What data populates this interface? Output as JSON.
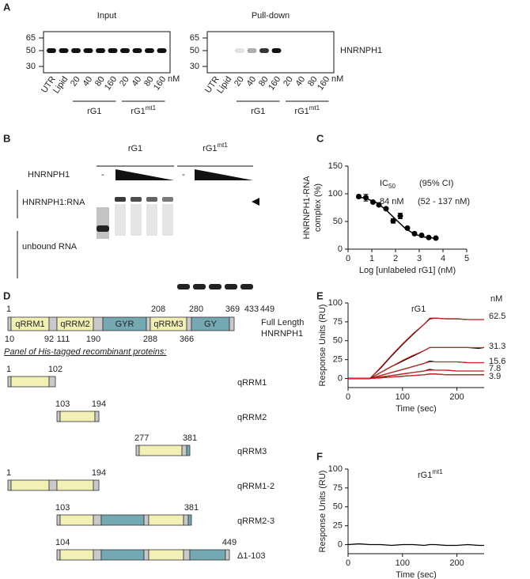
{
  "panel_labels": [
    "A",
    "B",
    "C",
    "D",
    "E",
    "F"
  ],
  "panel_a": {
    "protein": "HNRNPH1",
    "blots": [
      {
        "title": "Input",
        "mw_markers": [
          65,
          50,
          30
        ],
        "lanes": [
          "UTR",
          "Lipid",
          "20",
          "40",
          "80",
          "160",
          "20",
          "40",
          "80",
          "160"
        ],
        "unit": "nM",
        "groups": [
          {
            "text": "rG1"
          },
          {
            "text": "rG1",
            "superscript": "mt1"
          }
        ]
      },
      {
        "title": "Pull-down",
        "mw_markers": [
          65,
          50,
          30
        ],
        "lanes": [
          "UTR",
          "Lipid",
          "20",
          "40",
          "80",
          "160",
          "20",
          "40",
          "80",
          "160"
        ],
        "unit": "nM",
        "groups": [
          {
            "text": "rG1"
          },
          {
            "text": "rG1",
            "superscript": "mt1"
          }
        ]
      }
    ]
  },
  "panel_b": {
    "groups": [
      {
        "text": "rG1"
      },
      {
        "text": "rG1",
        "superscript": "mt1"
      }
    ],
    "protein": "HNRNPH1",
    "minus": [
      "-",
      "-"
    ],
    "bands": [
      "HNRNPH1:RNA",
      "unbound RNA"
    ]
  },
  "panel_d": {
    "domains": [
      "qRRM1",
      "qRRM2",
      "GYR",
      "qRRM3",
      "GY"
    ],
    "top_positions": [
      1,
      208,
      280,
      369,
      433,
      449
    ],
    "bottom_positions": [
      10,
      92,
      111,
      190,
      288,
      366
    ],
    "label": [
      "Full Length",
      "HNRNPH1"
    ],
    "panel_title": "Panel of His-tagged recombinant proteins:",
    "constructs": [
      {
        "name": "qRRM1",
        "start": 1,
        "end": 102
      },
      {
        "name": "qRRM2",
        "start": 103,
        "end": 194
      },
      {
        "name": "qRRM3",
        "start": 277,
        "end": 381
      },
      {
        "name": "qRRM1-2",
        "start": 1,
        "end": 194
      },
      {
        "name": "qRRM2-3",
        "start": 103,
        "end": 381
      },
      {
        "name": "Δ1-103",
        "start": 104,
        "end": 449
      }
    ]
  },
  "chart_data": [
    {
      "type": "scatter",
      "ylabel": [
        "HNRNPH1-RNA",
        "complex (%)"
      ],
      "xlabel": "Log [unlabeled rG1] (nM)",
      "annotations": [
        {
          "text": "IC",
          "subscript": "50"
        },
        "(95% CI)",
        "84 nM",
        "(52  - 137 nM)"
      ],
      "x": [
        0.45,
        0.75,
        1.05,
        1.3,
        1.6,
        1.9,
        2.2,
        2.5,
        2.8,
        3.1,
        3.4,
        3.7
      ],
      "values": [
        95,
        93,
        85,
        80,
        73,
        51,
        60,
        38,
        28,
        25,
        21,
        20
      ],
      "errors": [
        3,
        6,
        2,
        2,
        2,
        4,
        5,
        2,
        2,
        2,
        2,
        2
      ],
      "fit": {
        "x": [
          0.4,
          0.8,
          1.2,
          1.6,
          2.0,
          2.4,
          2.8,
          3.2,
          3.6,
          3.8
        ],
        "values": [
          95,
          91,
          84,
          71,
          54,
          38,
          27,
          22,
          20,
          19
        ]
      },
      "color": "#000000",
      "xlim": [
        0,
        5
      ],
      "ylim": [
        0,
        150
      ],
      "xticks": [
        0,
        1,
        2,
        3,
        4,
        5
      ],
      "yticks": [
        0,
        50,
        100,
        150
      ]
    },
    {
      "type": "line",
      "title": {
        "text": "rG1"
      },
      "legend_title": "nM",
      "ylabel": "Response Units (RU)",
      "xlabel": "Time (sec)",
      "x": [
        0,
        20,
        40,
        60,
        80,
        100,
        120,
        140,
        150,
        160,
        180,
        200,
        220,
        240,
        250
      ],
      "series": [
        {
          "name": "62.5",
          "color": "#000000",
          "fit_color": "#e8251f",
          "values": [
            0,
            0,
            0,
            14,
            30,
            45,
            59,
            72,
            79,
            80,
            79,
            79,
            78,
            78,
            78
          ],
          "fit": [
            0,
            0,
            0,
            15,
            31,
            46,
            60,
            72,
            80,
            80,
            79,
            79,
            78,
            78,
            78
          ]
        },
        {
          "name": "31.3",
          "color": "#000000",
          "fit_color": "#e8251f",
          "values": [
            0,
            0,
            0,
            8,
            16,
            23,
            30,
            37,
            41,
            41,
            41,
            41,
            41,
            40,
            41
          ],
          "fit": [
            0,
            0,
            0,
            8,
            16,
            24,
            31,
            37,
            41,
            41,
            41,
            41,
            41,
            41,
            41
          ]
        },
        {
          "name": "15.6",
          "color": "#000000",
          "fit_color": "#e8251f",
          "values": [
            0,
            0,
            0,
            4,
            8,
            12,
            16,
            20,
            23,
            22,
            22,
            22,
            21,
            21,
            21
          ],
          "fit": [
            0,
            0,
            0,
            4,
            8,
            12,
            16,
            20,
            22,
            22,
            22,
            22,
            21,
            21,
            21
          ]
        },
        {
          "name": "7.8",
          "color": "#000000",
          "fit_color": "#e8251f",
          "values": [
            0,
            0,
            0,
            2,
            4,
            6,
            8,
            10,
            12,
            11,
            11,
            10,
            10,
            10,
            10
          ],
          "fit": [
            0,
            0,
            0,
            2,
            4,
            6,
            8,
            10,
            11,
            11,
            11,
            10,
            10,
            10,
            10
          ]
        },
        {
          "name": "3.9",
          "color": "#000000",
          "fit_color": "#e8251f",
          "values": [
            0,
            0,
            0,
            1,
            2,
            3,
            4,
            5,
            6,
            6,
            5,
            5,
            5,
            5,
            5
          ],
          "fit": [
            0,
            0,
            0,
            1,
            2,
            3,
            4,
            5,
            6,
            6,
            5,
            5,
            5,
            5,
            5
          ]
        }
      ],
      "xlim": [
        0,
        250
      ],
      "ylim": [
        -12,
        100
      ],
      "xticks": [
        0,
        100,
        200
      ],
      "yticks": [
        0,
        25,
        50,
        75,
        100
      ]
    },
    {
      "type": "line",
      "title": {
        "text": "rG1",
        "superscript": "mt1"
      },
      "ylabel": "Response Units (RU)",
      "xlabel": "Time (sec)",
      "x": [
        0,
        20,
        40,
        60,
        80,
        100,
        120,
        140,
        150,
        160,
        180,
        200,
        220,
        240,
        250
      ],
      "series": [
        {
          "color": "#000000",
          "values": [
            0,
            1,
            0,
            0,
            -1,
            0,
            0,
            -1,
            0,
            0,
            -1,
            -1,
            0,
            -1,
            -1
          ]
        }
      ],
      "xlim": [
        0,
        250
      ],
      "ylim": [
        -12,
        100
      ],
      "xticks": [
        0,
        100,
        200
      ],
      "yticks": [
        0,
        25,
        50,
        75,
        100
      ]
    }
  ]
}
